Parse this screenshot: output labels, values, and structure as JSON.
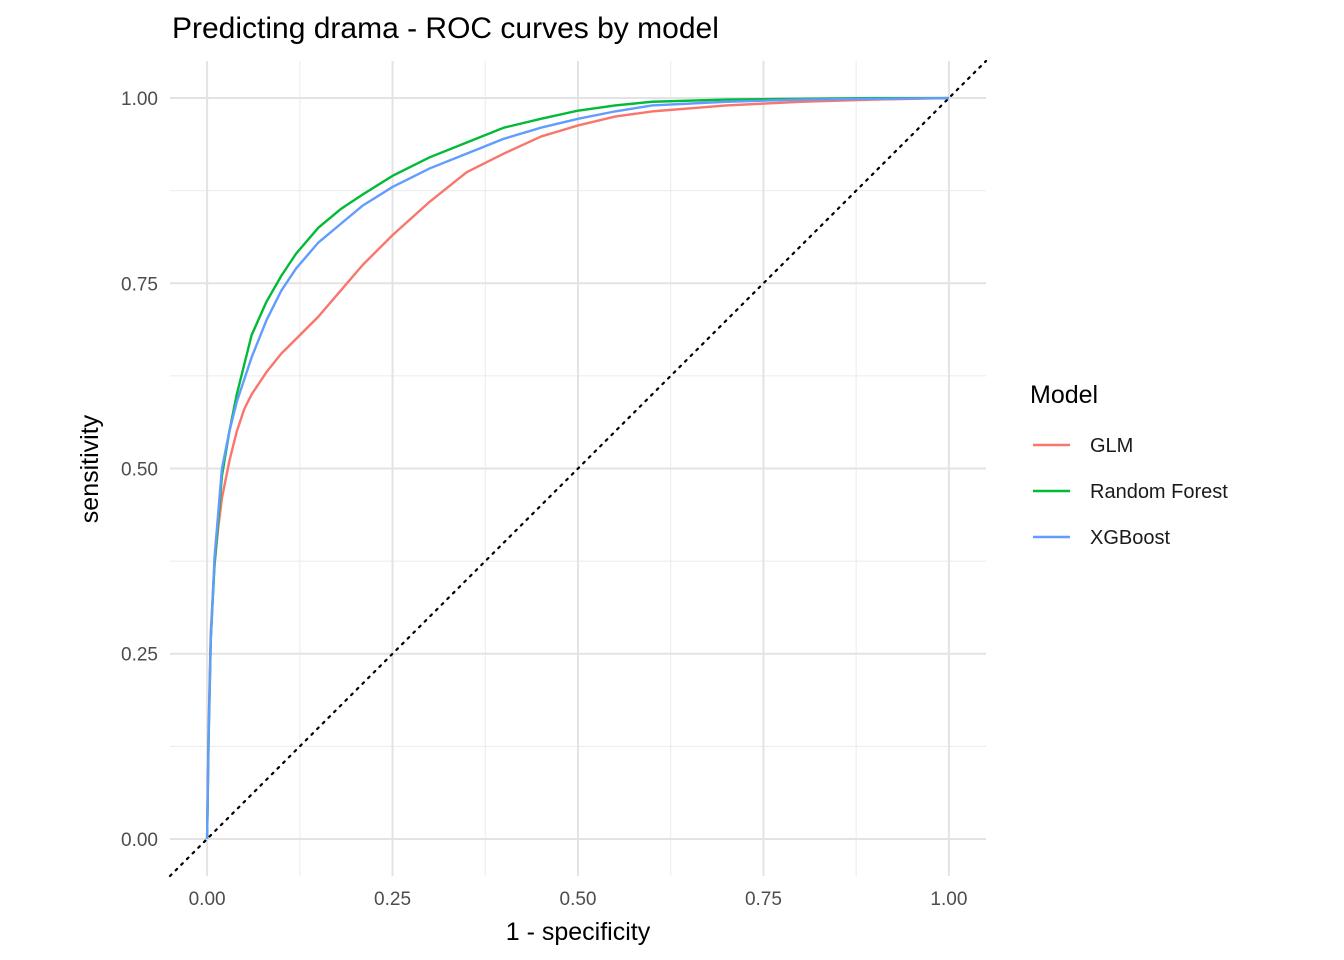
{
  "chart_data": {
    "type": "line",
    "title": "Predicting drama - ROC curves by model",
    "xlabel": "1 - specificity",
    "ylabel": "sensitivity",
    "xlim": [
      -0.05,
      1.05
    ],
    "ylim": [
      -0.05,
      1.05
    ],
    "x_ticks": [
      "0.00",
      "0.25",
      "0.50",
      "0.75",
      "1.00"
    ],
    "y_ticks": [
      "0.00",
      "0.25",
      "0.50",
      "0.75",
      "1.00"
    ],
    "grid": true,
    "reference_line": {
      "style": "dotted",
      "from": [
        0,
        0
      ],
      "to": [
        1,
        1
      ],
      "color": "#000000"
    },
    "legend": {
      "title": "Model",
      "position": "right"
    },
    "series": [
      {
        "name": "GLM",
        "color": "#F8766D",
        "x": [
          0,
          0.002,
          0.005,
          0.01,
          0.015,
          0.02,
          0.03,
          0.04,
          0.05,
          0.06,
          0.08,
          0.1,
          0.12,
          0.15,
          0.18,
          0.21,
          0.25,
          0.3,
          0.35,
          0.4,
          0.45,
          0.5,
          0.55,
          0.6,
          0.7,
          0.8,
          0.9,
          1.0
        ],
        "y": [
          0,
          0.15,
          0.28,
          0.37,
          0.42,
          0.46,
          0.51,
          0.55,
          0.58,
          0.6,
          0.63,
          0.655,
          0.675,
          0.705,
          0.74,
          0.775,
          0.815,
          0.86,
          0.9,
          0.925,
          0.948,
          0.963,
          0.975,
          0.982,
          0.99,
          0.995,
          0.998,
          1.0
        ]
      },
      {
        "name": "Random Forest",
        "color": "#00BA38",
        "x": [
          0,
          0.002,
          0.005,
          0.01,
          0.015,
          0.02,
          0.03,
          0.04,
          0.05,
          0.06,
          0.08,
          0.1,
          0.12,
          0.15,
          0.18,
          0.21,
          0.25,
          0.3,
          0.35,
          0.4,
          0.45,
          0.5,
          0.55,
          0.6,
          0.7,
          0.8,
          0.9,
          1.0
        ],
        "y": [
          0,
          0.13,
          0.27,
          0.37,
          0.43,
          0.49,
          0.55,
          0.6,
          0.64,
          0.68,
          0.725,
          0.76,
          0.79,
          0.825,
          0.85,
          0.87,
          0.895,
          0.92,
          0.94,
          0.96,
          0.972,
          0.983,
          0.99,
          0.995,
          0.998,
          0.999,
          1.0,
          1.0
        ]
      },
      {
        "name": "XGBoost",
        "color": "#619CFF",
        "x": [
          0,
          0.002,
          0.005,
          0.01,
          0.015,
          0.02,
          0.03,
          0.04,
          0.05,
          0.06,
          0.08,
          0.1,
          0.12,
          0.15,
          0.18,
          0.21,
          0.25,
          0.3,
          0.35,
          0.4,
          0.45,
          0.5,
          0.55,
          0.6,
          0.7,
          0.8,
          0.9,
          1.0
        ],
        "y": [
          0,
          0.14,
          0.27,
          0.38,
          0.44,
          0.5,
          0.55,
          0.59,
          0.62,
          0.65,
          0.7,
          0.74,
          0.77,
          0.805,
          0.83,
          0.855,
          0.88,
          0.905,
          0.925,
          0.945,
          0.96,
          0.972,
          0.982,
          0.99,
          0.995,
          0.998,
          0.999,
          1.0
        ]
      }
    ]
  }
}
